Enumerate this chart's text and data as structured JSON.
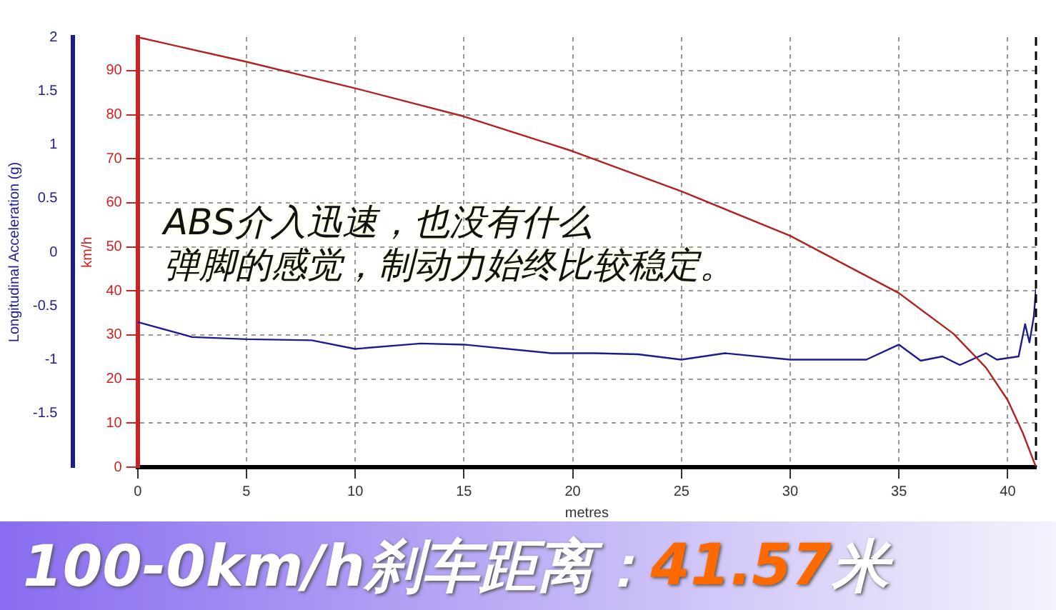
{
  "chart_data": {
    "type": "line",
    "xlabel": "metres",
    "ylabel": "Longitudinal Acceleration (g)",
    "y2label": "km/h",
    "xlim": [
      0,
      41.3
    ],
    "xticks": [
      0,
      5,
      10,
      15,
      20,
      25,
      30,
      35,
      40
    ],
    "ylim": [
      -2,
      2
    ],
    "yticks": [
      -1.5,
      -1,
      -0.5,
      0,
      0.5,
      1,
      1.5,
      2
    ],
    "y2lim": [
      0,
      97.6
    ],
    "y2ticks": [
      0,
      10,
      20,
      30,
      40,
      50,
      60,
      70,
      80,
      90
    ],
    "grid": true,
    "legend": false,
    "marker": "none",
    "line_style": "solid",
    "series": [
      {
        "color": "#b22222",
        "axis": "y2",
        "x": [
          0,
          5,
          10,
          15,
          20,
          25,
          30,
          35,
          37.5,
          39,
          40,
          40.7,
          41.3
        ],
        "values": [
          97.6,
          92,
          86,
          79.6,
          71.7,
          62.6,
          52.5,
          39.5,
          30.3,
          22.6,
          15.2,
          7.7,
          0
        ]
      },
      {
        "color": "#1c1c8c",
        "axis": "y",
        "x": [
          0,
          2.5,
          5,
          8,
          10,
          13,
          15,
          19,
          21,
          23,
          25,
          27,
          30,
          33.5,
          35,
          36,
          37,
          37.8,
          39,
          39.5,
          40.5,
          40.8,
          41,
          41.2,
          41.3
        ],
        "values": [
          -0.65,
          -0.79,
          -0.81,
          -0.82,
          -0.9,
          -0.85,
          -0.86,
          -0.94,
          -0.94,
          -0.95,
          -1,
          -0.94,
          -1,
          -1,
          -0.86,
          -1.01,
          -0.97,
          -1.05,
          -0.94,
          -1,
          -0.97,
          -0.67,
          -0.84,
          -0.6,
          -0.34
        ]
      }
    ],
    "ref_lines": [
      {
        "axis": "x",
        "value": 41.3,
        "color": "#000000",
        "line_style": "dashed"
      }
    ],
    "annotations": [
      "ABS介入迅速，也没有什么",
      "弹脚的感觉，制动力始终比较稳定。",
      "100-0km/h刹车距离：41.57米"
    ]
  }
}
